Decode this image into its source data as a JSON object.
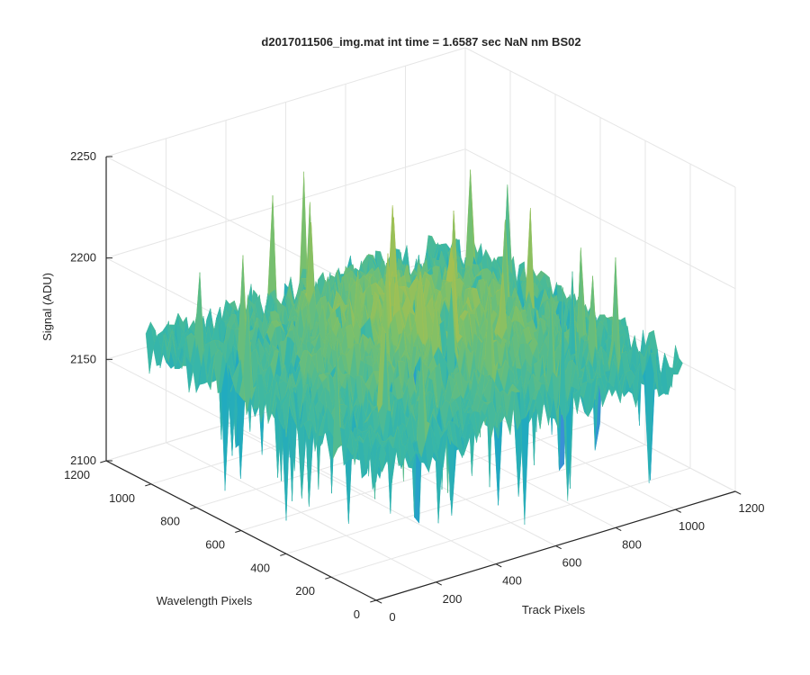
{
  "chart_data": {
    "type": "surface",
    "title": "d2017011506_img.mat int time = 1.6587 sec  NaN nm BS02",
    "xlabel": "Track Pixels",
    "ylabel": "Wavelength Pixels",
    "zlabel": "Signal (ADU)",
    "xlim": [
      0,
      1200
    ],
    "ylim": [
      0,
      1200
    ],
    "zlim": [
      2100,
      2250
    ],
    "x_ticks": [
      "0",
      "200",
      "400",
      "600",
      "800",
      "1000",
      "1200"
    ],
    "y_ticks": [
      "0",
      "200",
      "400",
      "600",
      "800",
      "1000",
      "1200"
    ],
    "z_ticks": [
      "2100",
      "2150",
      "2200",
      "2250"
    ],
    "grid": true,
    "colormap": [
      "#3a8fd6",
      "#1ea9c2",
      "#3cb8a4",
      "#7cc06a",
      "#b8c046",
      "#e8bd3a"
    ],
    "surface_summary": {
      "x_range": [
        0,
        1024
      ],
      "y_range": [
        0,
        1024
      ],
      "z_center_values": [
        2180,
        2190,
        2200
      ],
      "z_edge_values": [
        2160,
        2170
      ],
      "z_min_spikes": 2105,
      "z_max_spikes": 2230
    }
  }
}
